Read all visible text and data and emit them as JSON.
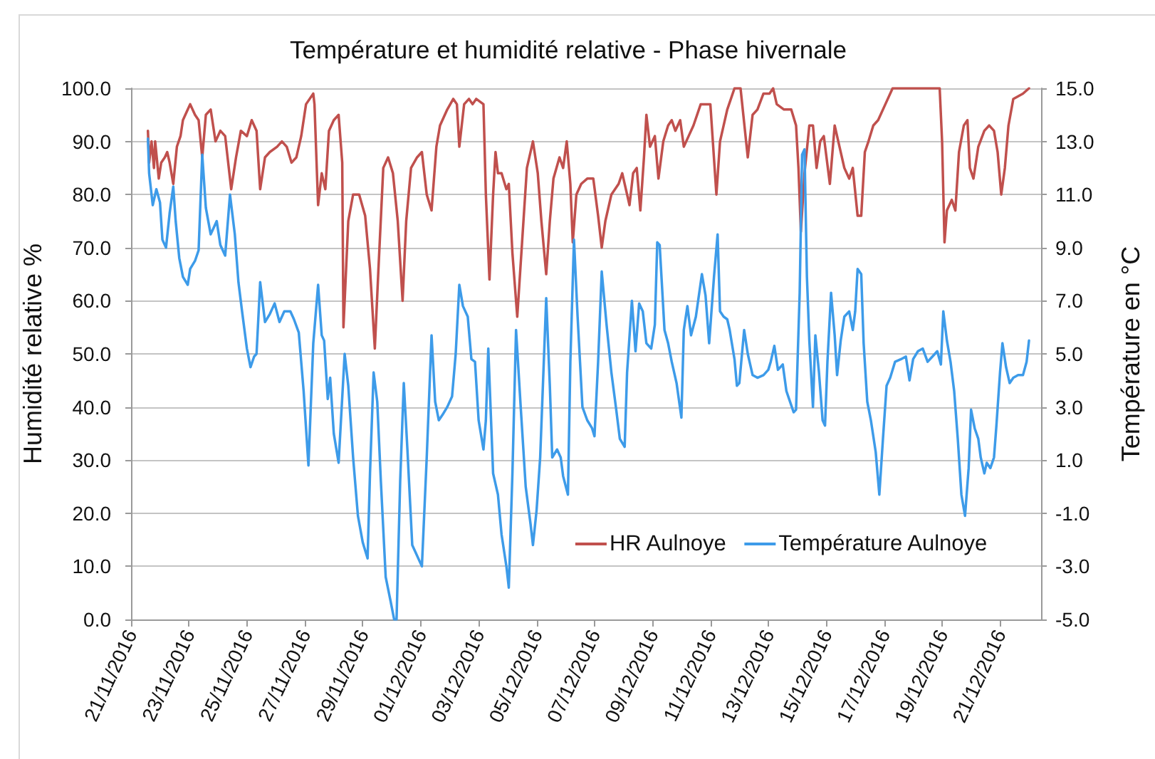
{
  "chart_data": {
    "type": "line",
    "title": "Température et humidité relative - Phase hivernale",
    "ylabel": "Humidité relative %",
    "y2label": "Température en °C",
    "xlim": [
      "2016-11-21",
      "2016-12-22T10:00"
    ],
    "xticks": [
      {
        "value": "2016-11-21",
        "label": "21/11/2016"
      },
      {
        "value": "2016-11-23",
        "label": "23/11/2016"
      },
      {
        "value": "2016-11-25",
        "label": "25/11/2016"
      },
      {
        "value": "2016-11-27",
        "label": "27/11/2016"
      },
      {
        "value": "2016-11-29",
        "label": "29/11/2016"
      },
      {
        "value": "2016-12-01",
        "label": "01/12/2016"
      },
      {
        "value": "2016-12-03",
        "label": "03/12/2016"
      },
      {
        "value": "2016-12-05",
        "label": "05/12/2016"
      },
      {
        "value": "2016-12-07",
        "label": "07/12/2016"
      },
      {
        "value": "2016-12-09",
        "label": "09/12/2016"
      },
      {
        "value": "2016-12-11",
        "label": "11/12/2016"
      },
      {
        "value": "2016-12-13",
        "label": "13/12/2016"
      },
      {
        "value": "2016-12-15",
        "label": "15/12/2016"
      },
      {
        "value": "2016-12-17",
        "label": "17/12/2016"
      },
      {
        "value": "2016-12-19",
        "label": "19/12/2016"
      },
      {
        "value": "2016-12-21",
        "label": "21/12/2016"
      }
    ],
    "ylim": [
      0,
      100
    ],
    "yticks": [
      {
        "value": 0,
        "label": "0.0"
      },
      {
        "value": 10,
        "label": "10.0"
      },
      {
        "value": 20,
        "label": "20.0"
      },
      {
        "value": 30,
        "label": "30.0"
      },
      {
        "value": 40,
        "label": "40.0"
      },
      {
        "value": 50,
        "label": "50.0"
      },
      {
        "value": 60,
        "label": "60.0"
      },
      {
        "value": 70,
        "label": "70.0"
      },
      {
        "value": 80,
        "label": "80.0"
      },
      {
        "value": 90,
        "label": "90.0"
      },
      {
        "value": 100,
        "label": "100.0"
      }
    ],
    "y2lim": [
      -5,
      15
    ],
    "y2ticks": [
      {
        "value": -5,
        "label": "-5.0"
      },
      {
        "value": -3,
        "label": "-3.0"
      },
      {
        "value": -1,
        "label": "-1.0"
      },
      {
        "value": 1,
        "label": "1.0"
      },
      {
        "value": 3,
        "label": "3.0"
      },
      {
        "value": 5,
        "label": "5.0"
      },
      {
        "value": 7,
        "label": "7.0"
      },
      {
        "value": 9,
        "label": "9.0"
      },
      {
        "value": 11,
        "label": "11.0"
      },
      {
        "value": 13,
        "label": "13.0"
      },
      {
        "value": 15,
        "label": "15.0"
      }
    ],
    "grid": "y",
    "legend": "bottom right",
    "series": [
      {
        "name": "HR Aulnoye",
        "color": "#c0504d",
        "x": [
          "2016-11-21T14:00",
          "2016-11-21T15:00",
          "2016-11-21T17:00",
          "2016-11-21T19:00",
          "2016-11-21T20:00",
          "2016-11-21T23:00",
          "2016-11-22T01:00",
          "2016-11-22T04:00",
          "2016-11-22T06:00",
          "2016-11-22T08:00",
          "2016-11-22T11:00",
          "2016-11-22T14:00",
          "2016-11-22T17:00",
          "2016-11-22T19:00",
          "2016-11-22T23:00",
          "2016-11-23T01:00",
          "2016-11-23T05:00",
          "2016-11-23T08:00",
          "2016-11-23T11:00",
          "2016-11-23T14:00",
          "2016-11-23T18:00",
          "2016-11-23T22:00",
          "2016-11-24T02:00",
          "2016-11-24T06:00",
          "2016-11-24T11:00",
          "2016-11-24T15:00",
          "2016-11-24T19:00",
          "2016-11-25T00:00",
          "2016-11-25T04:00",
          "2016-11-25T08:00",
          "2016-11-25T11:00",
          "2016-11-25T15:00",
          "2016-11-25T19:00",
          "2016-11-26T01:00",
          "2016-11-26T05:00",
          "2016-11-26T09:00",
          "2016-11-26T13:00",
          "2016-11-26T17:00",
          "2016-11-26T21:00",
          "2016-11-27T01:00",
          "2016-11-27T07:00",
          "2016-11-27T08:00",
          "2016-11-27T11:00",
          "2016-11-27T14:00",
          "2016-11-27T17:00",
          "2016-11-27T20:00",
          "2016-11-28T00:00",
          "2016-11-28T04:00",
          "2016-11-28T07:00",
          "2016-11-28T08:00",
          "2016-11-28T12:00",
          "2016-11-28T16:00",
          "2016-11-28T21:00",
          "2016-11-29T02:00",
          "2016-11-29T06:00",
          "2016-11-29T10:00",
          "2016-11-29T13:00",
          "2016-11-29T17:00",
          "2016-11-29T21:00",
          "2016-11-30T01:00",
          "2016-11-30T05:00",
          "2016-11-30T09:00",
          "2016-11-30T12:00",
          "2016-11-30T16:00",
          "2016-11-30T21:00",
          "2016-12-01T01:00",
          "2016-12-01T05:00",
          "2016-12-01T09:00",
          "2016-12-01T13:00",
          "2016-12-01T16:00",
          "2016-12-01T22:00",
          "2016-12-02T03:00",
          "2016-12-02T06:00",
          "2016-12-02T08:00",
          "2016-12-02T12:00",
          "2016-12-02T16:00",
          "2016-12-02T19:00",
          "2016-12-02T22:00",
          "2016-12-03T04:00",
          "2016-12-03T06:00",
          "2016-12-03T09:00",
          "2016-12-03T12:00",
          "2016-12-03T14:00",
          "2016-12-03T16:00",
          "2016-12-03T19:00",
          "2016-12-03T23:00",
          "2016-12-04T01:00",
          "2016-12-04T04:00",
          "2016-12-04T08:00",
          "2016-12-04T12:00",
          "2016-12-04T16:00",
          "2016-12-04T21:00",
          "2016-12-05T01:00",
          "2016-12-05T04:00",
          "2016-12-05T08:00",
          "2016-12-05T11:00",
          "2016-12-05T14:00",
          "2016-12-05T19:00",
          "2016-12-05T22:00",
          "2016-12-06T01:00",
          "2016-12-06T04:00",
          "2016-12-06T06:00",
          "2016-12-06T09:00",
          "2016-12-06T13:00",
          "2016-12-06T18:00",
          "2016-12-06T23:00",
          "2016-12-07T03:00",
          "2016-12-07T06:00",
          "2016-12-07T09:00",
          "2016-12-07T14:00",
          "2016-12-07T20:00",
          "2016-12-07T23:00",
          "2016-12-08T03:00",
          "2016-12-08T05:00",
          "2016-12-08T08:00",
          "2016-12-08T11:00",
          "2016-12-08T14:00",
          "2016-12-08T17:00",
          "2016-12-08T19:00",
          "2016-12-08T22:00",
          "2016-12-09T02:00",
          "2016-12-09T05:00",
          "2016-12-09T09:00",
          "2016-12-09T13:00",
          "2016-12-09T16:00",
          "2016-12-09T19:00",
          "2016-12-09T23:00",
          "2016-12-10T02:00",
          "2016-12-10T06:00",
          "2016-12-10T10:00",
          "2016-12-10T16:00",
          "2016-12-10T20:00",
          "2016-12-11T00:00",
          "2016-12-11T05:00",
          "2016-12-11T08:00",
          "2016-12-11T14:00",
          "2016-12-11T20:00",
          "2016-12-12T01:00",
          "2016-12-12T07:00",
          "2016-12-12T11:00",
          "2016-12-12T15:00",
          "2016-12-12T20:00",
          "2016-12-13T01:00",
          "2016-12-13T04:00",
          "2016-12-13T07:00",
          "2016-12-13T13:00",
          "2016-12-13T19:00",
          "2016-12-13T23:00",
          "2016-12-14T01:00",
          "2016-12-14T03:00",
          "2016-12-14T06:00",
          "2016-12-14T10:00",
          "2016-12-14T13:00",
          "2016-12-14T16:00",
          "2016-12-14T19:00",
          "2016-12-14T22:00",
          "2016-12-15T03:00",
          "2016-12-15T07:00",
          "2016-12-15T11:00",
          "2016-12-15T15:00",
          "2016-12-15T19:00",
          "2016-12-15T22:00",
          "2016-12-16T02:00",
          "2016-12-16T05:00",
          "2016-12-16T08:00",
          "2016-12-16T11:00",
          "2016-12-16T15:00",
          "2016-12-16T19:00",
          "2016-12-17T01:00",
          "2016-12-17T07:00",
          "2016-12-17T13:00",
          "2016-12-18T22:00",
          "2016-12-19T00:00",
          "2016-12-19T02:00",
          "2016-12-19T04:00",
          "2016-12-19T08:00",
          "2016-12-19T11:00",
          "2016-12-19T14:00",
          "2016-12-19T18:00",
          "2016-12-19T21:00",
          "2016-12-19T23:00",
          "2016-12-20T02:00",
          "2016-12-20T06:00",
          "2016-12-20T11:00",
          "2016-12-20T15:00",
          "2016-12-20T19:00",
          "2016-12-20T22:00",
          "2016-12-21T01:00",
          "2016-12-21T04:00",
          "2016-12-21T07:00",
          "2016-12-21T11:00",
          "2016-12-21T19:00",
          "2016-12-22T00:00"
        ],
        "values": [
          92,
          86,
          90,
          85,
          90,
          83,
          86,
          87,
          88,
          86,
          82,
          89,
          91,
          94,
          96,
          97,
          95,
          94,
          87,
          95,
          96,
          90,
          92,
          91,
          81,
          87,
          92,
          91,
          94,
          92,
          81,
          87,
          88,
          89,
          90,
          89,
          86,
          87,
          91,
          97,
          99,
          97,
          78,
          84,
          81,
          92,
          94,
          95,
          86,
          55,
          75,
          80,
          80,
          76,
          66,
          51,
          66,
          85,
          87,
          84,
          75,
          60,
          75,
          85,
          87,
          88,
          80,
          77,
          89,
          93,
          96,
          98,
          97,
          89,
          97,
          98,
          97,
          98,
          97,
          80,
          64,
          80,
          88,
          84,
          84,
          81,
          82,
          69,
          57,
          71,
          85,
          90,
          84,
          75,
          65,
          75,
          83,
          87,
          85,
          90,
          82,
          71,
          80,
          82,
          83,
          83,
          76,
          70,
          75,
          80,
          82,
          84,
          80,
          78,
          84,
          85,
          77,
          87,
          95,
          89,
          91,
          83,
          90,
          93,
          94,
          92,
          94,
          89,
          91,
          93,
          97,
          97,
          97,
          80,
          90,
          96,
          100,
          100,
          87,
          95,
          96,
          99,
          99,
          100,
          97,
          96,
          96,
          93,
          85,
          73,
          84,
          93,
          93,
          85,
          90,
          91,
          82,
          93,
          89,
          85,
          83,
          85,
          76,
          76,
          88,
          90,
          93,
          94,
          97,
          100,
          100,
          100,
          90,
          71,
          77,
          79,
          77,
          88,
          93,
          94,
          85,
          83,
          89,
          92,
          93,
          92,
          88,
          80,
          85,
          93,
          98,
          99,
          100
        ]
      },
      {
        "name": "Température Aulnoye",
        "color": "#3d9be9",
        "axis": "y2",
        "x": [
          "2016-11-21T14:00",
          "2016-11-21T15:00",
          "2016-11-21T18:00",
          "2016-11-21T21:00",
          "2016-11-22T00:00",
          "2016-11-22T02:00",
          "2016-11-22T05:00",
          "2016-11-22T08:00",
          "2016-11-22T11:00",
          "2016-11-22T13:00",
          "2016-11-22T16:00",
          "2016-11-22T19:00",
          "2016-11-22T23:00",
          "2016-11-23T01:00",
          "2016-11-23T05:00",
          "2016-11-23T08:00",
          "2016-11-23T11:00",
          "2016-11-23T14:00",
          "2016-11-23T18:00",
          "2016-11-23T21:00",
          "2016-11-23T23:00",
          "2016-11-24T02:00",
          "2016-11-24T06:00",
          "2016-11-24T10:00",
          "2016-11-24T14:00",
          "2016-11-24T17:00",
          "2016-11-24T20:00",
          "2016-11-25T00:00",
          "2016-11-25T03:00",
          "2016-11-25T06:00",
          "2016-11-25T08:00",
          "2016-11-25T11:00",
          "2016-11-25T15:00",
          "2016-11-25T19:00",
          "2016-11-25T23:00",
          "2016-11-26T03:00",
          "2016-11-26T07:00",
          "2016-11-26T12:00",
          "2016-11-26T15:00",
          "2016-11-26T19:00",
          "2016-11-26T23:00",
          "2016-11-27T03:00",
          "2016-11-27T07:00",
          "2016-11-27T11:00",
          "2016-11-27T14:00",
          "2016-11-27T16:00",
          "2016-11-27T19:00",
          "2016-11-27T21:00",
          "2016-11-28T00:00",
          "2016-11-28T04:00",
          "2016-11-28T09:00",
          "2016-11-28T12:00",
          "2016-11-28T16:00",
          "2016-11-28T20:00",
          "2016-11-29T00:00",
          "2016-11-29T04:00",
          "2016-11-29T06:00",
          "2016-11-29T09:00",
          "2016-11-29T12:00",
          "2016-11-29T15:00",
          "2016-11-29T19:00",
          "2016-11-29T23:00",
          "2016-11-30T02:00",
          "2016-11-30T04:00",
          "2016-11-30T07:00",
          "2016-11-30T10:00",
          "2016-11-30T13:00",
          "2016-11-30T17:00",
          "2016-12-01T01:00",
          "2016-12-01T05:00",
          "2016-12-01T09:00",
          "2016-12-01T12:00",
          "2016-12-01T15:00",
          "2016-12-01T18:00",
          "2016-12-01T22:00",
          "2016-12-02T02:00",
          "2016-12-02T05:00",
          "2016-12-02T08:00",
          "2016-12-02T11:00",
          "2016-12-02T15:00",
          "2016-12-02T18:00",
          "2016-12-02T21:00",
          "2016-12-03T00:00",
          "2016-12-03T04:00",
          "2016-12-03T06:00",
          "2016-12-03T08:00",
          "2016-12-03T12:00",
          "2016-12-03T16:00",
          "2016-12-03T19:00",
          "2016-12-03T23:00",
          "2016-12-04T01:00",
          "2016-12-04T04:00",
          "2016-12-04T07:00",
          "2016-12-04T11:00",
          "2016-12-04T15:00",
          "2016-12-04T19:00",
          "2016-12-04T21:00",
          "2016-12-05T00:00",
          "2016-12-05T03:00",
          "2016-12-05T06:00",
          "2016-12-05T08:00",
          "2016-12-05T11:00",
          "2016-12-05T13:00",
          "2016-12-05T17:00",
          "2016-12-05T20:00",
          "2016-12-05T22:00",
          "2016-12-06T02:00",
          "2016-12-06T04:00",
          "2016-12-06T07:00",
          "2016-12-06T10:00",
          "2016-12-06T12:00",
          "2016-12-06T14:00",
          "2016-12-06T18:00",
          "2016-12-06T22:00",
          "2016-12-07T00:00",
          "2016-12-07T03:00",
          "2016-12-07T06:00",
          "2016-12-07T10:00",
          "2016-12-07T14:00",
          "2016-12-07T18:00",
          "2016-12-07T21:00",
          "2016-12-08T01:00",
          "2016-12-08T03:00",
          "2016-12-08T07:00",
          "2016-12-08T10:00",
          "2016-12-08T13:00",
          "2016-12-08T16:00",
          "2016-12-08T19:00",
          "2016-12-08T23:00",
          "2016-12-09T02:00",
          "2016-12-09T04:00",
          "2016-12-09T06:00",
          "2016-12-09T10:00",
          "2016-12-09T13:00",
          "2016-12-09T16:00",
          "2016-12-09T20:00",
          "2016-12-10T00:00",
          "2016-12-10T02:00",
          "2016-12-10T05:00",
          "2016-12-10T08:00",
          "2016-12-10T12:00",
          "2016-12-10T17:00",
          "2016-12-10T20:00",
          "2016-12-10T23:00",
          "2016-12-11T03:00",
          "2016-12-11T06:00",
          "2016-12-11T08:00",
          "2016-12-11T11:00",
          "2016-12-11T14:00",
          "2016-12-11T16:00",
          "2016-12-11T20:00",
          "2016-12-11T22:00",
          "2016-12-12T00:00",
          "2016-12-12T04:00",
          "2016-12-12T07:00",
          "2016-12-12T11:00",
          "2016-12-12T15:00",
          "2016-12-12T20:00",
          "2016-12-13T00:00",
          "2016-12-13T02:00",
          "2016-12-13T05:00",
          "2016-12-13T08:00",
          "2016-12-13T12:00",
          "2016-12-13T15:00",
          "2016-12-13T18:00",
          "2016-12-13T21:00",
          "2016-12-13T23:00",
          "2016-12-14T02:00",
          "2016-12-14T04:00",
          "2016-12-14T06:00",
          "2016-12-14T08:00",
          "2016-12-14T10:00",
          "2016-12-14T13:00",
          "2016-12-14T15:00",
          "2016-12-14T18:00",
          "2016-12-14T21:00",
          "2016-12-14T23:00",
          "2016-12-15T01:00",
          "2016-12-15T04:00",
          "2016-12-15T07:00",
          "2016-12-15T09:00",
          "2016-12-15T12:00",
          "2016-12-15T15:00",
          "2016-12-15T19:00",
          "2016-12-15T22:00",
          "2016-12-16T00:00",
          "2016-12-16T02:00",
          "2016-12-16T05:00",
          "2016-12-16T07:00",
          "2016-12-16T10:00",
          "2016-12-16T13:00",
          "2016-12-16T17:00",
          "2016-12-16T20:00",
          "2016-12-16T23:00",
          "2016-12-17T02:00",
          "2016-12-17T05:00",
          "2016-12-17T09:00",
          "2016-12-17T14:00",
          "2016-12-17T18:00",
          "2016-12-17T21:00",
          "2016-12-18T00:00",
          "2016-12-18T04:00",
          "2016-12-18T08:00",
          "2016-12-18T12:00",
          "2016-12-18T16:00",
          "2016-12-18T20:00",
          "2016-12-18T23:00",
          "2016-12-19T01:00",
          "2016-12-19T04:00",
          "2016-12-19T07:00",
          "2016-12-19T10:00",
          "2016-12-19T13:00",
          "2016-12-19T16:00",
          "2016-12-19T19:00",
          "2016-12-19T22:00",
          "2016-12-20T00:00",
          "2016-12-20T03:00",
          "2016-12-20T06:00",
          "2016-12-20T08:00",
          "2016-12-20T11:00",
          "2016-12-20T13:00",
          "2016-12-20T16:00",
          "2016-12-20T19:00",
          "2016-12-20T21:00",
          "2016-12-21T00:00",
          "2016-12-21T02:00",
          "2016-12-21T05:00",
          "2016-12-21T08:00",
          "2016-12-21T11:00",
          "2016-12-21T15:00",
          "2016-12-21T19:00",
          "2016-12-21T22:00",
          "2016-12-22T00:00"
        ],
        "values": [
          13.1,
          11.8,
          10.6,
          11.2,
          10.7,
          9.3,
          9.0,
          10.3,
          11.3,
          10.0,
          8.6,
          7.9,
          7.6,
          8.2,
          8.5,
          8.9,
          12.5,
          10.5,
          9.5,
          9.8,
          10.0,
          9.1,
          8.7,
          11.0,
          9.5,
          7.7,
          6.6,
          5.2,
          4.5,
          4.9,
          5.0,
          7.7,
          6.2,
          6.5,
          6.9,
          6.2,
          6.6,
          6.6,
          6.3,
          5.8,
          3.6,
          0.8,
          5.4,
          7.6,
          5.7,
          5.5,
          3.3,
          4.1,
          2.0,
          0.9,
          5.0,
          3.8,
          1.1,
          -1.1,
          -2.1,
          -2.7,
          0.5,
          4.3,
          3.2,
          0.2,
          -3.4,
          -4.3,
          -5.0,
          -5.0,
          0.2,
          3.9,
          1.4,
          -2.2,
          -3.0,
          1.1,
          5.7,
          3.2,
          2.5,
          2.7,
          3.0,
          3.4,
          5.0,
          7.6,
          6.8,
          6.4,
          4.8,
          4.7,
          2.5,
          1.4,
          2.5,
          5.2,
          0.5,
          -0.3,
          -1.8,
          -3.0,
          -3.8,
          0.5,
          5.9,
          2.9,
          0.0,
          -1.4,
          -2.2,
          -0.9,
          1.1,
          4.7,
          7.1,
          3.8,
          1.1,
          1.4,
          1.1,
          0.4,
          -0.3,
          4.7,
          9.3,
          6.4,
          4.7,
          3.0,
          2.5,
          2.2,
          1.9,
          4.7,
          8.1,
          6.1,
          4.3,
          2.9,
          1.8,
          1.5,
          4.3,
          7.0,
          5.1,
          6.9,
          6.6,
          5.4,
          5.2,
          6.1,
          9.2,
          9.1,
          5.9,
          5.4,
          4.7,
          3.9,
          2.6,
          5.9,
          6.8,
          5.7,
          6.4,
          8.0,
          7.2,
          5.4,
          7.9,
          9.5,
          6.6,
          6.4,
          6.3,
          5.9,
          4.8,
          3.8,
          3.9,
          5.9,
          5.0,
          4.2,
          4.1,
          4.2,
          4.4,
          4.7,
          5.3,
          4.4,
          4.6,
          3.6,
          3.2,
          2.8,
          2.9,
          7.3,
          12.5,
          12.7,
          7.9,
          5.5,
          3.0,
          5.7,
          4.3,
          2.5,
          2.3,
          4.7,
          7.3,
          5.7,
          4.2,
          5.5,
          6.4,
          6.6,
          5.9,
          6.6,
          8.2,
          8.0,
          5.4,
          3.2,
          2.5,
          1.3,
          -0.3,
          1.8,
          3.8,
          4.1,
          4.7,
          4.8,
          4.9,
          4.0,
          4.8,
          5.1,
          5.2,
          4.7,
          4.9,
          5.1,
          4.6,
          6.6,
          5.5,
          4.7,
          3.6,
          1.8,
          -0.3,
          -1.1,
          0.7,
          2.9,
          2.2,
          1.8,
          1.1,
          0.5,
          0.9,
          0.7,
          1.1,
          2.3,
          4.3,
          5.4,
          4.5,
          3.9,
          4.1,
          4.2,
          4.2,
          4.7,
          5.5
        ]
      }
    ]
  }
}
